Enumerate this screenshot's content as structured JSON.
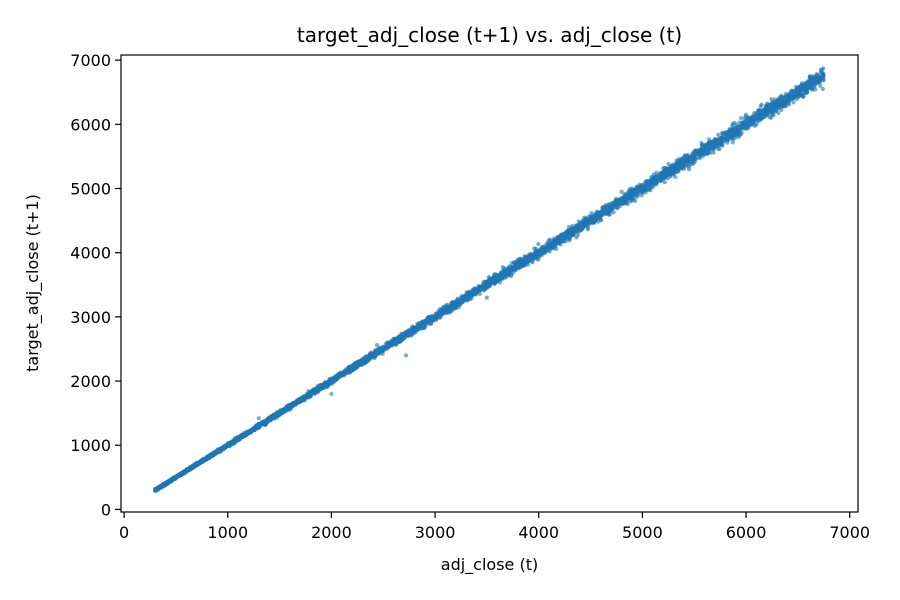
{
  "chart_data": {
    "type": "scatter",
    "title": "target_adj_close (t+1) vs. adj_close (t)",
    "xlabel": "adj_close (t)",
    "ylabel": "target_adj_close (t+1)",
    "xlim": [
      -30,
      7080
    ],
    "ylim": [
      -40,
      7080
    ],
    "xticks": [
      0,
      1000,
      2000,
      3000,
      4000,
      5000,
      6000,
      7000
    ],
    "yticks": [
      0,
      1000,
      2000,
      3000,
      4000,
      5000,
      6000,
      7000
    ],
    "xtick_labels": [
      "0",
      "1000",
      "2000",
      "3000",
      "4000",
      "5000",
      "6000",
      "7000"
    ],
    "ytick_labels": [
      "0",
      "1000",
      "2000",
      "3000",
      "4000",
      "5000",
      "6000",
      "7000"
    ],
    "grid": false,
    "point_color": "#1f77b4",
    "point_alpha": 0.6,
    "x_range": [
      300,
      6750
    ],
    "points": [
      [
        300,
        302
      ],
      [
        350,
        355
      ],
      [
        420,
        418
      ],
      [
        500,
        505
      ],
      [
        600,
        598
      ],
      [
        700,
        707
      ],
      [
        800,
        795
      ],
      [
        900,
        908
      ],
      [
        1000,
        995
      ],
      [
        1100,
        1112
      ],
      [
        1200,
        1190
      ],
      [
        1300,
        1312
      ],
      [
        1400,
        1395
      ],
      [
        1500,
        1508
      ],
      [
        1600,
        1592
      ],
      [
        1700,
        1710
      ],
      [
        1800,
        1790
      ],
      [
        1900,
        1912
      ],
      [
        2000,
        1995
      ],
      [
        2100,
        2110
      ],
      [
        2200,
        2190
      ],
      [
        2300,
        2315
      ],
      [
        2400,
        2380
      ],
      [
        2440,
        2560
      ],
      [
        2500,
        2520
      ],
      [
        2600,
        2580
      ],
      [
        2700,
        2730
      ],
      [
        2720,
        2400
      ],
      [
        2800,
        2790
      ],
      [
        2900,
        2930
      ],
      [
        3000,
        2980
      ],
      [
        3100,
        3120
      ],
      [
        3200,
        3180
      ],
      [
        3300,
        3330
      ],
      [
        3400,
        3380
      ],
      [
        3500,
        3520
      ],
      [
        3600,
        3570
      ],
      [
        3700,
        3740
      ],
      [
        3800,
        3780
      ],
      [
        3900,
        3930
      ],
      [
        4000,
        3960
      ],
      [
        4100,
        4130
      ],
      [
        4200,
        4180
      ],
      [
        4300,
        4330
      ],
      [
        4400,
        4370
      ],
      [
        4500,
        4530
      ],
      [
        4600,
        4580
      ],
      [
        4700,
        4730
      ],
      [
        4800,
        4770
      ],
      [
        4900,
        4930
      ],
      [
        5000,
        4980
      ],
      [
        5100,
        5130
      ],
      [
        5200,
        5170
      ],
      [
        5300,
        5330
      ],
      [
        5400,
        5370
      ],
      [
        5500,
        5530
      ],
      [
        5600,
        5570
      ],
      [
        5700,
        5730
      ],
      [
        5800,
        5770
      ],
      [
        5900,
        5930
      ],
      [
        6000,
        5970
      ],
      [
        6100,
        6130
      ],
      [
        6200,
        6170
      ],
      [
        6300,
        6330
      ],
      [
        6400,
        6370
      ],
      [
        6500,
        6530
      ],
      [
        6600,
        6570
      ],
      [
        6700,
        6730
      ],
      [
        6740,
        6550
      ],
      [
        2000,
        1800
      ],
      [
        3500,
        3300
      ],
      [
        4800,
        4950
      ],
      [
        5450,
        5300
      ],
      [
        6000,
        6150
      ],
      [
        1300,
        1420
      ],
      [
        4300,
        4200
      ],
      [
        5850,
        5800
      ],
      [
        6680,
        6780
      ]
    ]
  }
}
